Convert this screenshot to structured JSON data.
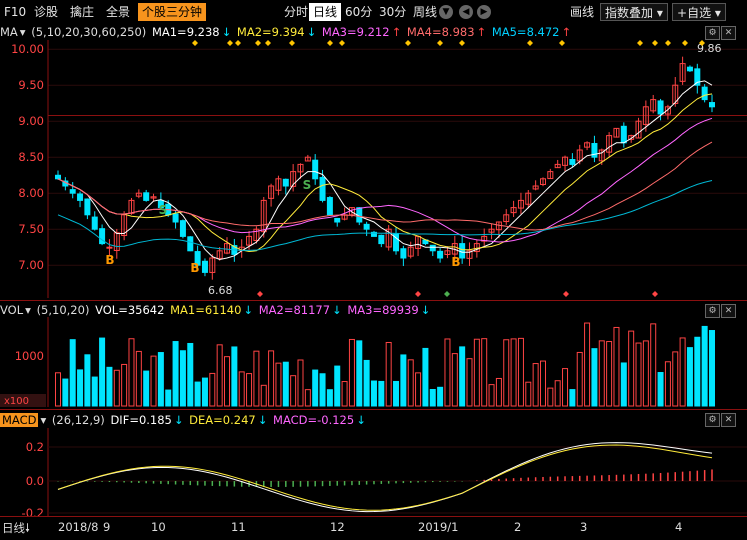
{
  "toolbar": {
    "code": "F10",
    "diagnose": "诊股",
    "board": "擒庄",
    "panorama": "全景",
    "stock_3min": "个股三分钟",
    "periods": [
      "分时",
      "日线",
      "60分",
      "30分",
      "周线"
    ],
    "active_period": "日线",
    "draw": "画线",
    "overlay": "指数叠加",
    "favorite": "自选",
    "colors": {
      "active_bg": "#f7941d",
      "up": "#ff4444",
      "down": "#00e5ff"
    }
  },
  "main_panel": {
    "label": "MA",
    "params": "(5,10,20,30,60,250)",
    "ma1": "MA1=9.238",
    "ma2": "MA2=9.394",
    "ma3": "MA3=9.212",
    "ma4": "MA4=8.983",
    "ma5": "MA5=8.472",
    "y_ticks": [
      "10.00",
      "9.50",
      "9.00",
      "8.50",
      "8.00",
      "7.50",
      "7.00"
    ],
    "high_label": "9.86",
    "low_label": "6.68",
    "signal_b": "B",
    "signal_s": "S"
  },
  "vol_panel": {
    "label": "VOL",
    "params": "(5,10,20)",
    "vol": "VOL=35642",
    "ma1": "MA1=61140",
    "ma2": "MA2=81177",
    "ma3": "MA3=89939",
    "y_ticks": [
      "1000"
    ],
    "unit": "x100"
  },
  "macd_panel": {
    "label": "MACD",
    "params": "(26,12,9)",
    "dif": "DIF=0.185",
    "dea": "DEA=0.247",
    "macd": "MACD=-0.125",
    "y_ticks": [
      "0.2",
      "0.0",
      "-0.2"
    ]
  },
  "bottom": {
    "period": "日线",
    "x_labels": [
      "2018/8",
      "9",
      "10",
      "11",
      "12",
      "2019/1",
      "2",
      "3",
      "4"
    ]
  },
  "chart_data": {
    "type": "candlestick",
    "ylim": [
      6.6,
      10.1
    ],
    "ohlc_note": "daily K-line",
    "closes": [
      8.2,
      8.1,
      8.0,
      7.9,
      7.7,
      7.5,
      7.3,
      7.25,
      7.45,
      7.7,
      7.9,
      8.0,
      7.9,
      7.95,
      7.8,
      7.7,
      7.6,
      7.4,
      7.2,
      7.0,
      6.9,
      7.1,
      7.2,
      7.3,
      7.15,
      7.25,
      7.4,
      7.5,
      7.9,
      8.1,
      8.2,
      8.1,
      8.3,
      8.4,
      8.5,
      8.2,
      7.9,
      7.7,
      7.6,
      7.7,
      7.8,
      7.6,
      7.5,
      7.4,
      7.3,
      7.5,
      7.2,
      7.1,
      7.25,
      7.4,
      7.3,
      7.2,
      7.1,
      7.2,
      7.3,
      7.1,
      7.2,
      7.3,
      7.4,
      7.5,
      7.6,
      7.7,
      7.8,
      7.9,
      8.0,
      8.1,
      8.2,
      8.3,
      8.4,
      8.5,
      8.4,
      8.6,
      8.7,
      8.5,
      8.6,
      8.8,
      8.9,
      8.7,
      8.8,
      9.0,
      9.2,
      9.3,
      9.1,
      9.2,
      9.5,
      9.8,
      9.7,
      9.5,
      9.3,
      9.2
    ]
  }
}
